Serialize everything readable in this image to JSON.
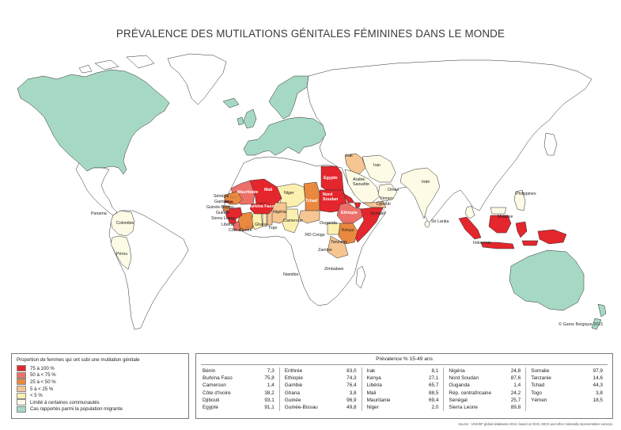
{
  "title": "PRÉVALENCE DES MUTILATIONS GÉNITALES FÉMININES DANS LE MONDE",
  "colors": {
    "land": "#ffffff",
    "border": "#2b2b2b",
    "ocean": "#ffffff"
  },
  "legend": {
    "title": "Proportion de femmes qui ont subi une mutilation génitale",
    "items": [
      {
        "label": "75 à 100 %",
        "color": "#e4262d"
      },
      {
        "label": "50 à < 75 %",
        "color": "#ec6f68"
      },
      {
        "label": "25 à < 50 %",
        "color": "#e9893f"
      },
      {
        "label": "5 à < 25 %",
        "color": "#f5c592"
      },
      {
        "label": "< 5 %",
        "color": "#fcf0b0"
      },
      {
        "label": "Limité à certaines communautés",
        "color": "#fdfbe6"
      },
      {
        "label": "Cas rapportés parmi la population migrante",
        "color": "#a6d9c3"
      }
    ]
  },
  "table": {
    "header": "Prévalence % 15-49 ans",
    "columns": [
      [
        {
          "name": "Bénin",
          "value": "7,3"
        },
        {
          "name": "Burkina Faso",
          "value": "75,8"
        },
        {
          "name": "Cameroun",
          "value": "1,4"
        },
        {
          "name": "Côte d'Ivoire",
          "value": "38,2"
        },
        {
          "name": "Djibouti",
          "value": "93,1"
        },
        {
          "name": "Egypte",
          "value": "91,1"
        }
      ],
      [
        {
          "name": "Erithrée",
          "value": "83,0"
        },
        {
          "name": "Ethiopie",
          "value": "74,3"
        },
        {
          "name": "Gambie",
          "value": "76,4"
        },
        {
          "name": "Ghana",
          "value": "3,8"
        },
        {
          "name": "Guinée",
          "value": "96,9"
        },
        {
          "name": "Guinée-Bissau",
          "value": "49,8"
        }
      ],
      [
        {
          "name": "Irak",
          "value": "8,1"
        },
        {
          "name": "Kenya",
          "value": "27,1"
        },
        {
          "name": "Libéria",
          "value": "65,7"
        },
        {
          "name": "Mali",
          "value": "88,5"
        },
        {
          "name": "Mauritanie",
          "value": "69,4"
        },
        {
          "name": "Niger",
          "value": "2,0"
        }
      ],
      [
        {
          "name": "Nigéria",
          "value": "24,8"
        },
        {
          "name": "Nord Soudan",
          "value": "87,6"
        },
        {
          "name": "Ouganda",
          "value": "1,4"
        },
        {
          "name": "Rép. centrafricaine",
          "value": "24,2"
        },
        {
          "name": "Sénégal",
          "value": "25,7"
        },
        {
          "name": "Sierra Leone",
          "value": "89,8"
        }
      ],
      [
        {
          "name": "Somalie",
          "value": "97,9"
        },
        {
          "name": "Tanzanie",
          "value": "14,6"
        },
        {
          "name": "Tchad",
          "value": "44,3"
        },
        {
          "name": "Togo",
          "value": "3,8"
        },
        {
          "name": "Yémen",
          "value": "18,5"
        }
      ]
    ]
  },
  "map_labels": {
    "iran": "Iran",
    "irak": "Irak",
    "arabie": "Arabie Saoudite",
    "oman": "Oman",
    "yemen": "Yémen",
    "djibouti": "Djibouti",
    "inde": "Inde",
    "sri_lanka": "Sri Lanka",
    "egypte": "Egypte",
    "nord_soudan": "Nord Soudan",
    "ethiopie": "Ethiopie",
    "somalie": "Somalie",
    "kenya": "Kenya",
    "ouganda": "Ouganda",
    "tanzanie": "Tanzanie",
    "rd_congo": "RD Congo",
    "zambie": "Zambie",
    "zimbabwe": "Zimbabwe",
    "namibie": "Namibie",
    "niger": "Niger",
    "tchad": "Tchad",
    "mauritanie": "Mauritanie",
    "mali": "Mali",
    "burkina": "Burkina Faso",
    "nigeria": "Nigéria",
    "cameroun": "Cameroun",
    "senegal": "Sénégal",
    "gambie": "Gambie",
    "guinee_bissau": "Guinée-Bissau",
    "guinee": "Guinée",
    "sierra_leone": "Sierra Leone",
    "liberia": "Libéria",
    "cote_ivoire": "Côte d'Ivoire",
    "ghana": "Ghana",
    "togo": "Togo",
    "panama": "Panama",
    "colombie": "Colombie",
    "perou": "Pérou",
    "philippines": "Philippines",
    "malaisie": "Malaisie",
    "indonesie": "Indonésie"
  },
  "copyright": "© Game Belgique 2015",
  "source": "Source : UNICEF global databases 2014, based on DHS, MICS and other nationally representative surveys."
}
